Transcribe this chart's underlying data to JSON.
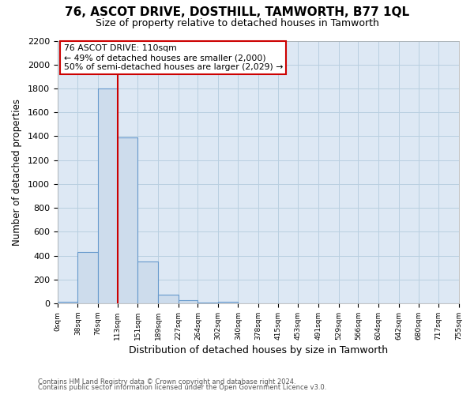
{
  "title": "76, ASCOT DRIVE, DOSTHILL, TAMWORTH, B77 1QL",
  "subtitle": "Size of property relative to detached houses in Tamworth",
  "xlabel": "Distribution of detached houses by size in Tamworth",
  "ylabel": "Number of detached properties",
  "bar_edges": [
    0,
    38,
    76,
    113,
    151,
    189,
    227,
    264,
    302,
    340,
    378,
    415,
    453,
    491,
    529,
    566,
    604,
    642,
    680,
    717,
    755
  ],
  "bar_heights": [
    15,
    430,
    1800,
    1390,
    350,
    75,
    25,
    5,
    15,
    0,
    0,
    0,
    0,
    0,
    0,
    0,
    0,
    0,
    0,
    0
  ],
  "bar_color": "#cddcec",
  "bar_edge_color": "#6699cc",
  "vline_x": 113,
  "vline_color": "#cc0000",
  "annotation_title": "76 ASCOT DRIVE: 110sqm",
  "annotation_line1": "← 49% of detached houses are smaller (2,000)",
  "annotation_line2": "50% of semi-detached houses are larger (2,029) →",
  "annotation_box_color": "#ffffff",
  "annotation_box_edge": "#cc0000",
  "xlim": [
    0,
    755
  ],
  "ylim": [
    0,
    2200
  ],
  "yticks": [
    0,
    200,
    400,
    600,
    800,
    1000,
    1200,
    1400,
    1600,
    1800,
    2000,
    2200
  ],
  "xtick_labels": [
    "0sqm",
    "38sqm",
    "76sqm",
    "113sqm",
    "151sqm",
    "189sqm",
    "227sqm",
    "264sqm",
    "302sqm",
    "340sqm",
    "378sqm",
    "415sqm",
    "453sqm",
    "491sqm",
    "529sqm",
    "566sqm",
    "604sqm",
    "642sqm",
    "680sqm",
    "717sqm",
    "755sqm"
  ],
  "bg_color": "#ffffff",
  "plot_bg_color": "#dde8f4",
  "grid_color": "#b8cfe0",
  "footer1": "Contains HM Land Registry data © Crown copyright and database right 2024.",
  "footer2": "Contains public sector information licensed under the Open Government Licence v3.0."
}
